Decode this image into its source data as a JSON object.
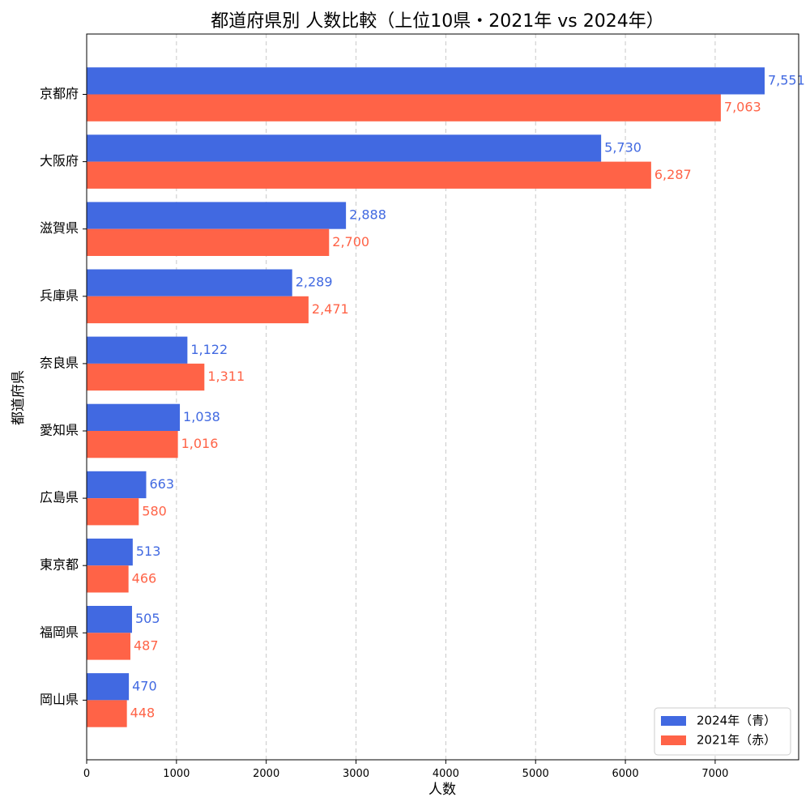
{
  "chart_data": {
    "type": "bar",
    "orientation": "horizontal",
    "title": "都道府県別 人数比較（上位10県・2021年 vs 2024年）",
    "xlabel": "人数",
    "ylabel": "都道府県",
    "categories": [
      "京都府",
      "大阪府",
      "滋賀県",
      "兵庫県",
      "奈良県",
      "愛知県",
      "広島県",
      "東京都",
      "福岡県",
      "岡山県"
    ],
    "series": [
      {
        "name": "2024年（青）",
        "color": "#4169e1",
        "values": [
          7551,
          5730,
          2888,
          2289,
          1122,
          1038,
          663,
          513,
          505,
          470
        ],
        "labels": [
          "7,551",
          "5,730",
          "2,888",
          "2,289",
          "1,122",
          "1,038",
          "663",
          "513",
          "505",
          "470"
        ]
      },
      {
        "name": "2021年（赤）",
        "color": "#ff6347",
        "values": [
          7063,
          6287,
          2700,
          2471,
          1311,
          1016,
          580,
          466,
          487,
          448
        ],
        "labels": [
          "7,063",
          "6,287",
          "2,700",
          "2,471",
          "1,311",
          "1,016",
          "580",
          "466",
          "487",
          "448"
        ]
      }
    ],
    "xticks": [
      "0",
      "1000",
      "2000",
      "3000",
      "4000",
      "5000",
      "6000",
      "7000"
    ],
    "xtick_values": [
      0,
      1000,
      2000,
      3000,
      4000,
      5000,
      6000,
      7000
    ],
    "xlim": [
      0,
      7930
    ],
    "grid": "x-dashed",
    "legend_position": "bottom-right"
  }
}
